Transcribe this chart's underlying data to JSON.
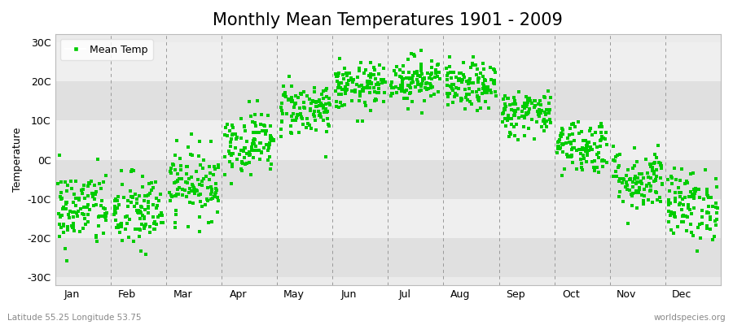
{
  "title": "Monthly Mean Temperatures 1901 - 2009",
  "ylabel": "Temperature",
  "subtitle_left": "Latitude 55.25 Longitude 53.75",
  "subtitle_right": "worldspecies.org",
  "legend_label": "Mean Temp",
  "dot_color": "#00CC00",
  "bg_color": "#EBEBEB",
  "band_colors": [
    "#E0E0E0",
    "#EFEFEF"
  ],
  "ytick_labels": [
    "-30C",
    "-20C",
    "-10C",
    "0C",
    "10C",
    "20C",
    "30C"
  ],
  "ytick_values": [
    -30,
    -20,
    -10,
    0,
    10,
    20,
    30
  ],
  "ylim": [
    -32,
    32
  ],
  "months": [
    "Jan",
    "Feb",
    "Mar",
    "Apr",
    "May",
    "Jun",
    "Jul",
    "Aug",
    "Sep",
    "Oct",
    "Nov",
    "Dec"
  ],
  "monthly_means": [
    -12.5,
    -13.5,
    -6.0,
    4.5,
    13.0,
    18.5,
    20.5,
    18.5,
    12.0,
    3.5,
    -5.0,
    -11.5
  ],
  "monthly_stds": [
    5.0,
    5.0,
    4.5,
    4.0,
    3.5,
    3.0,
    3.0,
    3.0,
    3.0,
    3.5,
    4.0,
    4.5
  ],
  "n_years": 109,
  "seed": 42,
  "title_fontsize": 15,
  "axis_label_fontsize": 9,
  "tick_fontsize": 9,
  "marker_size": 2.5
}
